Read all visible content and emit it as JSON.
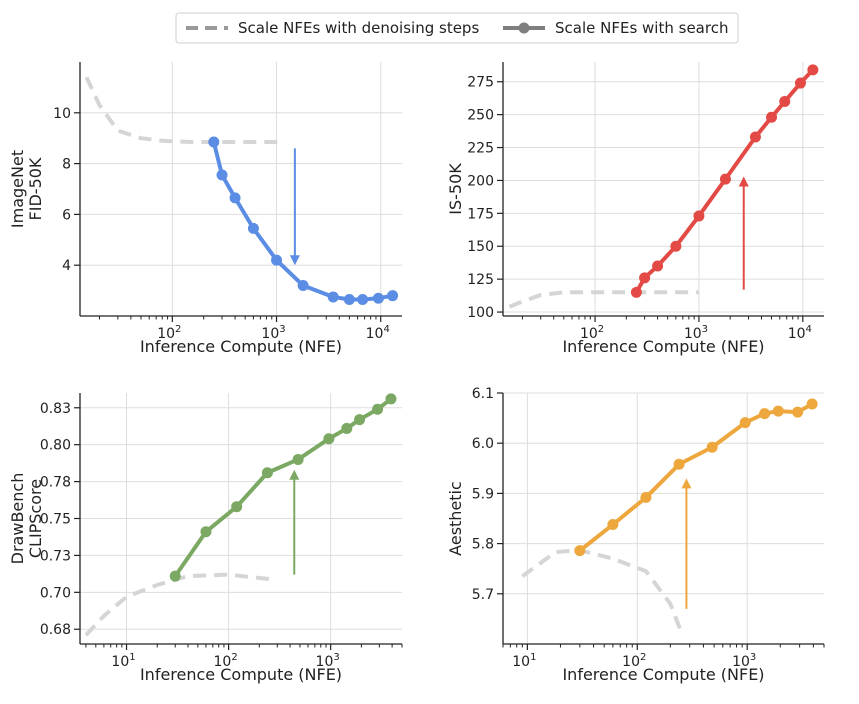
{
  "legend": {
    "entries": [
      {
        "label": "Scale NFEs with denoising steps",
        "style": "dashed",
        "color": "#9a9a9a"
      },
      {
        "label": "Scale NFEs with search",
        "style": "solid-marker",
        "color": "#7f7f7f"
      }
    ]
  },
  "chart_data": [
    {
      "type": "line",
      "id": "fid",
      "xscale": "log",
      "xlim": [
        13,
        16000
      ],
      "ylim": [
        2.0,
        12.0
      ],
      "xticks": [
        100,
        1000,
        10000
      ],
      "xtick_labels": [
        [
          "10",
          "2"
        ],
        [
          "10",
          "3"
        ],
        [
          "10",
          "4"
        ]
      ],
      "yticks": [
        4,
        6,
        8,
        10
      ],
      "ytick_labels": [
        "4",
        "6",
        "8",
        "10"
      ],
      "xlabel": "Inference Compute (NFE)",
      "ylabel": [
        "ImageNet",
        "FID-50K"
      ],
      "series": [
        {
          "name": "Scale NFEs with denoising steps",
          "style": "dashed",
          "color": "#d5d5d5",
          "x": [
            15,
            20,
            30,
            50,
            80,
            150,
            300,
            1200
          ],
          "y": [
            11.4,
            10.3,
            9.3,
            9.0,
            8.9,
            8.85,
            8.85,
            8.85
          ]
        },
        {
          "name": "Scale NFEs with search",
          "style": "solid",
          "color": "#5b8de4",
          "x": [
            250,
            300,
            400,
            600,
            1000,
            1800,
            3500,
            5000,
            6700,
            9500,
            13000
          ],
          "y": [
            8.85,
            7.55,
            6.65,
            5.45,
            4.2,
            3.2,
            2.75,
            2.65,
            2.65,
            2.7,
            2.8
          ]
        }
      ],
      "arrow": {
        "x": 1500,
        "y_from": 8.6,
        "y_to": 4.0,
        "color": "#5b8de4"
      }
    },
    {
      "type": "line",
      "id": "is",
      "xscale": "log",
      "xlim": [
        13,
        16000
      ],
      "ylim": [
        97,
        290
      ],
      "xticks": [
        100,
        1000,
        10000
      ],
      "xtick_labels": [
        [
          "10",
          "2"
        ],
        [
          "10",
          "3"
        ],
        [
          "10",
          "4"
        ]
      ],
      "yticks": [
        100,
        125,
        150,
        175,
        200,
        225,
        250,
        275
      ],
      "ytick_labels": [
        "100",
        "125",
        "150",
        "175",
        "200",
        "225",
        "250",
        "275"
      ],
      "xlabel": "Inference Compute (NFE)",
      "ylabel": [
        "IS-50K"
      ],
      "series": [
        {
          "name": "Scale NFEs with denoising steps",
          "style": "dashed",
          "color": "#d5d5d5",
          "x": [
            15,
            20,
            30,
            50,
            100,
            250,
            1000
          ],
          "y": [
            104,
            108,
            113,
            115,
            115,
            115,
            115
          ]
        },
        {
          "name": "Scale NFEs with search",
          "style": "solid",
          "color": "#e34a45",
          "x": [
            250,
            300,
            400,
            600,
            1000,
            1800,
            3500,
            5000,
            6700,
            9500,
            12500
          ],
          "y": [
            115,
            126,
            135,
            150,
            173,
            201,
            233,
            248,
            260,
            274,
            284
          ]
        }
      ],
      "arrow": {
        "x": 2700,
        "y_from": 117,
        "y_to": 203,
        "color": "#e34a45"
      }
    },
    {
      "type": "line",
      "id": "clip",
      "xscale": "log",
      "xlim": [
        3.5,
        5000
      ],
      "ylim": [
        0.665,
        0.835
      ],
      "xticks": [
        10,
        100,
        1000
      ],
      "xtick_labels": [
        [
          "10",
          "1"
        ],
        [
          "10",
          "2"
        ],
        [
          "10",
          "3"
        ]
      ],
      "yticks": [
        0.675,
        0.7,
        0.725,
        0.75,
        0.775,
        0.8,
        0.825
      ],
      "ytick_labels": [
        "0.68",
        "0.70",
        "0.73",
        "0.75",
        "0.78",
        "0.80",
        "0.83"
      ],
      "xlabel": "Inference Compute (NFE)",
      "ylabel": [
        "DrawBench",
        "CLIPScore"
      ],
      "series": [
        {
          "name": "Scale NFEs with denoising steps",
          "style": "dashed",
          "color": "#d5d5d5",
          "x": [
            4,
            6,
            10,
            20,
            40,
            100,
            250
          ],
          "y": [
            0.671,
            0.684,
            0.697,
            0.705,
            0.711,
            0.712,
            0.709
          ]
        },
        {
          "name": "Scale NFEs with search",
          "style": "solid",
          "color": "#7ba862",
          "x": [
            30,
            60,
            120,
            240,
            480,
            960,
            1440,
            1920,
            2880,
            3900
          ],
          "y": [
            0.711,
            0.741,
            0.758,
            0.781,
            0.79,
            0.804,
            0.811,
            0.817,
            0.824,
            0.831
          ]
        }
      ],
      "arrow": {
        "x": 440,
        "y_from": 0.712,
        "y_to": 0.783,
        "color": "#7ba862"
      }
    },
    {
      "type": "line",
      "id": "aesthetic",
      "xscale": "log",
      "xlim": [
        6,
        5000
      ],
      "ylim": [
        5.6,
        6.1
      ],
      "xticks": [
        10,
        100,
        1000
      ],
      "xtick_labels": [
        [
          "10",
          "1"
        ],
        [
          "10",
          "2"
        ],
        [
          "10",
          "3"
        ]
      ],
      "yticks": [
        5.7,
        5.8,
        5.9,
        6.0,
        6.1
      ],
      "ytick_labels": [
        "5.7",
        "5.8",
        "5.9",
        "6.0",
        "6.1"
      ],
      "xlabel": "Inference Compute (NFE)",
      "ylabel": [
        "Aesthetic"
      ],
      "series": [
        {
          "name": "Scale NFEs with denoising steps",
          "style": "dashed",
          "color": "#d5d5d5",
          "x": [
            9,
            12,
            18,
            30,
            60,
            120,
            200,
            250
          ],
          "y": [
            5.735,
            5.755,
            5.783,
            5.787,
            5.77,
            5.745,
            5.68,
            5.625
          ]
        },
        {
          "name": "Scale NFEs with search",
          "style": "solid",
          "color": "#eda73d",
          "x": [
            30,
            60,
            120,
            240,
            480,
            960,
            1440,
            1920,
            2880,
            3900
          ],
          "y": [
            5.786,
            5.838,
            5.892,
            5.958,
            5.992,
            6.041,
            6.059,
            6.064,
            6.062,
            6.078
          ]
        }
      ],
      "arrow": {
        "x": 280,
        "y_from": 5.67,
        "y_to": 5.93,
        "color": "#eda73d"
      }
    }
  ]
}
